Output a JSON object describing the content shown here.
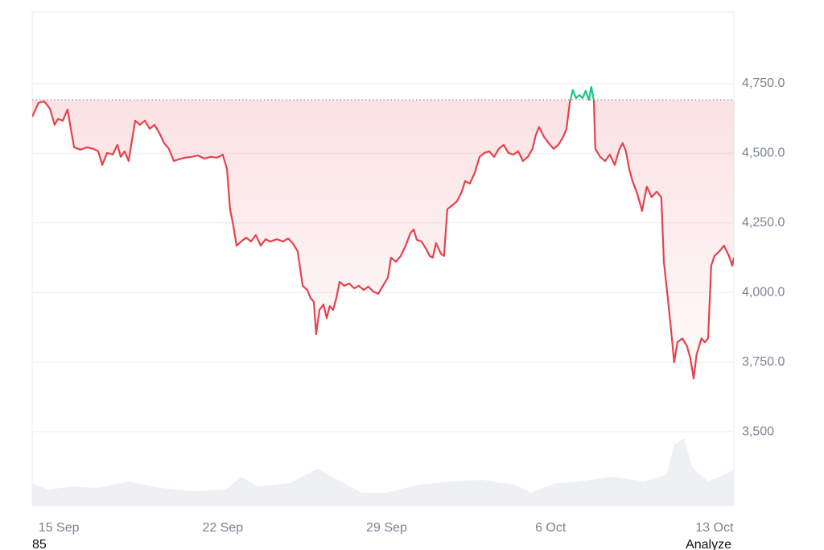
{
  "chart_data": {
    "type": "line",
    "x": [
      256.86,
      257.13,
      257.38,
      257.62,
      257.82,
      257.96,
      258.17,
      258.37,
      258.51,
      258.65,
      258.92,
      259.2,
      259.47,
      259.68,
      259.85,
      260.06,
      260.3,
      260.5,
      260.64,
      260.81,
      260.98,
      261.09,
      261.26,
      261.46,
      261.67,
      261.88,
      262.08,
      262.29,
      262.5,
      262.7,
      262.91,
      263.11,
      263.39,
      263.66,
      263.94,
      264.21,
      264.49,
      264.76,
      265.0,
      265.18,
      265.31,
      265.45,
      265.59,
      265.79,
      266.0,
      266.21,
      266.41,
      266.62,
      266.83,
      267.03,
      267.31,
      267.58,
      267.79,
      267.99,
      268.2,
      268.41,
      268.61,
      268.75,
      268.89,
      268.99,
      269.13,
      269.3,
      269.44,
      269.57,
      269.71,
      269.85,
      269.99,
      270.19,
      270.4,
      270.61,
      270.81,
      271.02,
      271.22,
      271.43,
      271.64,
      271.84,
      272.05,
      272.19,
      272.39,
      272.6,
      272.81,
      273.01,
      273.15,
      273.29,
      273.49,
      273.7,
      273.84,
      273.97,
      274.11,
      274.32,
      274.45,
      274.59,
      274.8,
      275.0,
      275.21,
      275.35,
      275.55,
      275.76,
      275.97,
      276.17,
      276.38,
      276.59,
      276.79,
      277.0,
      277.2,
      277.41,
      277.62,
      277.82,
      278.03,
      278.23,
      278.37,
      278.51,
      278.72,
      278.92,
      279.13,
      279.33,
      279.54,
      279.68,
      279.82,
      279.95,
      280.09,
      280.23,
      280.37,
      280.5,
      280.64,
      280.74,
      280.85,
      280.91,
      281.12,
      281.33,
      281.53,
      281.74,
      281.95,
      282.08,
      282.22,
      282.36,
      282.5,
      282.7,
      282.91,
      283.11,
      283.32,
      283.53,
      283.73,
      283.84,
      284.01,
      284.15,
      284.28,
      284.42,
      284.63,
      284.83,
      284.97,
      285.11,
      285.24,
      285.45,
      285.59,
      285.73,
      285.86,
      286.0,
      286.21,
      286.41,
      286.62,
      286.76,
      286.83
    ],
    "values": [
      4631,
      4681,
      4686,
      4660,
      4602,
      4623,
      4617,
      4657,
      4588,
      4521,
      4513,
      4521,
      4516,
      4507,
      4458,
      4501,
      4495,
      4530,
      4487,
      4507,
      4472,
      4530,
      4617,
      4602,
      4617,
      4588,
      4602,
      4573,
      4536,
      4516,
      4472,
      4478,
      4484,
      4487,
      4492,
      4481,
      4487,
      4484,
      4495,
      4443,
      4299,
      4241,
      4168,
      4183,
      4197,
      4183,
      4206,
      4168,
      4191,
      4183,
      4191,
      4183,
      4194,
      4177,
      4148,
      4024,
      4009,
      3980,
      3966,
      3850,
      3937,
      3957,
      3908,
      3951,
      3937,
      3980,
      4038,
      4024,
      4032,
      4015,
      4024,
      4009,
      4021,
      4003,
      3995,
      4024,
      4053,
      4125,
      4110,
      4131,
      4168,
      4212,
      4226,
      4189,
      4183,
      4154,
      4131,
      4125,
      4177,
      4139,
      4131,
      4299,
      4313,
      4327,
      4362,
      4400,
      4391,
      4429,
      4487,
      4501,
      4507,
      4487,
      4516,
      4530,
      4501,
      4495,
      4507,
      4472,
      4487,
      4516,
      4565,
      4594,
      4559,
      4536,
      4516,
      4530,
      4559,
      4588,
      4681,
      4727,
      4698,
      4709,
      4698,
      4724,
      4692,
      4738,
      4689,
      4516,
      4487,
      4472,
      4495,
      4458,
      4516,
      4536,
      4507,
      4443,
      4400,
      4356,
      4293,
      4380,
      4342,
      4362,
      4342,
      4110,
      3980,
      3864,
      3749,
      3821,
      3835,
      3807,
      3763,
      3691,
      3778,
      3835,
      3821,
      3835,
      4096,
      4131,
      4148,
      4168,
      4131,
      4096,
      4125
    ],
    "color": "#e5424d",
    "up_color": "#16c784",
    "baseline": 4692,
    "xlim": [
      256.86,
      286.83
    ],
    "xticks": [
      {
        "value": 258,
        "label": "15 Sep"
      },
      {
        "value": 265,
        "label": "22 Sep"
      },
      {
        "value": 272,
        "label": "29 Sep"
      },
      {
        "value": 279,
        "label": "6 Oct"
      },
      {
        "value": 286,
        "label": "13 Oct"
      }
    ],
    "ylim": [
      3234,
      5007
    ],
    "yticks": [
      {
        "value": 3500,
        "label": "3,500"
      },
      {
        "value": 3750,
        "label": "3,750.0"
      },
      {
        "value": 4000,
        "label": "4,000.0"
      },
      {
        "value": 4250,
        "label": "4,250.0"
      },
      {
        "value": 4500,
        "label": "4,500.0"
      },
      {
        "value": 4750,
        "label": "4,750.0"
      }
    ],
    "grid": true
  },
  "footer": {
    "left": "85",
    "right": "Analyze"
  }
}
